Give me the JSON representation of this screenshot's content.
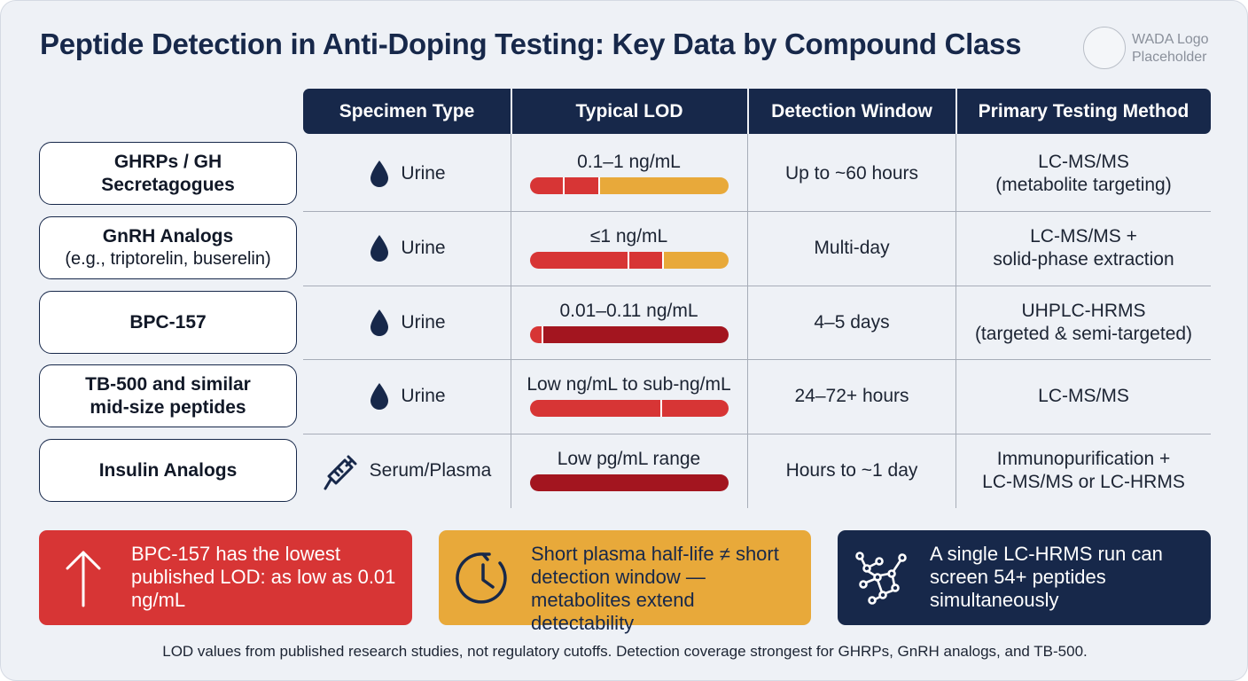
{
  "title": "Peptide Detection in Anti-Doping Testing: Key Data by Compound Class",
  "logo": {
    "line1": "WADA Logo",
    "line2": "Placeholder"
  },
  "headers": [
    "Specimen Type",
    "Typical LOD",
    "Detection Window",
    "Primary Testing Method"
  ],
  "colors": {
    "navy": "#17284a",
    "red": "#d73535",
    "dark_red": "#a3151f",
    "amber": "#e8a93a"
  },
  "rows": [
    {
      "label": "GHRPs / GH\nSecretagogues",
      "label_sub": "",
      "specimen": "Urine",
      "specimen_icon": "droplet-icon",
      "lod": "0.1–1 ng/mL",
      "lod_bar": [
        {
          "fraction": 0.17,
          "color": "#d73535"
        },
        {
          "fraction": 0.17,
          "color": "#d73535"
        },
        {
          "fraction": 0.66,
          "color": "#e8a93a"
        }
      ],
      "window": "Up to ~60 hours",
      "method_line1": "LC-MS/MS",
      "method_line2": "(metabolite targeting)"
    },
    {
      "label": "GnRH Analogs",
      "label_sub": "(e.g., triptorelin, buserelin)",
      "specimen": "Urine",
      "specimen_icon": "droplet-icon",
      "lod": "≤1 ng/mL",
      "lod_bar": [
        {
          "fraction": 0.5,
          "color": "#d73535"
        },
        {
          "fraction": 0.17,
          "color": "#d73535"
        },
        {
          "fraction": 0.33,
          "color": "#e8a93a"
        }
      ],
      "window": "Multi-day",
      "method_line1": "LC-MS/MS +",
      "method_line2": "solid-phase extraction"
    },
    {
      "label": "BPC-157",
      "label_sub": "",
      "specimen": "Urine",
      "specimen_icon": "droplet-icon",
      "lod": "0.01–0.11 ng/mL",
      "lod_bar": [
        {
          "fraction": 0.06,
          "color": "#d73535"
        },
        {
          "fraction": 0.94,
          "color": "#a3151f"
        }
      ],
      "window": "4–5 days",
      "method_line1": "UHPLC-HRMS",
      "method_line2": "(targeted & semi-targeted)"
    },
    {
      "label": "TB-500 and similar\nmid-size peptides",
      "label_sub": "",
      "specimen": "Urine",
      "specimen_icon": "droplet-icon",
      "lod": "Low ng/mL to sub-ng/mL",
      "lod_bar": [
        {
          "fraction": 0.66,
          "color": "#d73535"
        },
        {
          "fraction": 0.34,
          "color": "#d73535"
        }
      ],
      "window": "24–72+ hours",
      "method_line1": "LC-MS/MS",
      "method_line2": ""
    },
    {
      "label": "Insulin Analogs",
      "label_sub": "",
      "specimen": "Serum/Plasma",
      "specimen_icon": "syringe-icon",
      "lod": "Low pg/mL range",
      "lod_bar": [
        {
          "fraction": 1.0,
          "color": "#a3151f"
        }
      ],
      "window": "Hours to ~1 day",
      "method_line1": "Immunopurification +",
      "method_line2": "LC-MS/MS or LC-HRMS"
    }
  ],
  "callouts": [
    {
      "icon": "arrow-up-icon",
      "text": "BPC-157 has the lowest published LOD: as low as 0.01 ng/mL",
      "bg": "#d73535",
      "fg": "#ffffff"
    },
    {
      "icon": "clock-icon",
      "text": "Short plasma half-life ≠ short detection window — metabolites extend detectability",
      "bg": "#e8a93a",
      "fg": "#17284a"
    },
    {
      "icon": "molecule-icon",
      "text": "A single LC-HRMS run can screen 54+ peptides simultaneously",
      "bg": "#17284a",
      "fg": "#ffffff"
    }
  ],
  "footnote": "LOD values from published research studies, not regulatory cutoffs. Detection coverage strongest for GHRPs, GnRH analogs, and TB-500."
}
